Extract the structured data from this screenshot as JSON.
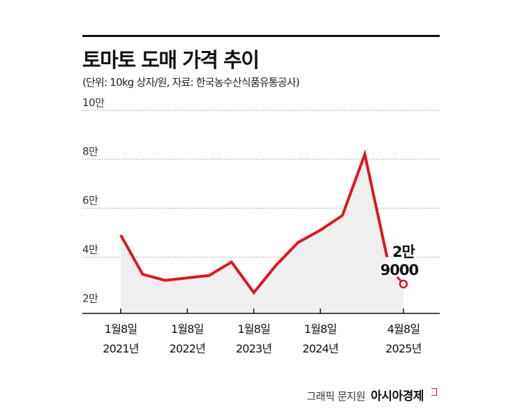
{
  "title": "토마토 도매 가격 추이",
  "subtitle": "(단위: 10kg 상자/원, 자료: 한국농수산식품유통공사)",
  "credit": {
    "graphic": "그래픽 문지원",
    "brand": "아시아경제"
  },
  "colors": {
    "line": "#e0161e",
    "area": "#efefef",
    "grid": "#999999"
  },
  "chart_data": {
    "type": "area",
    "title": "토마토 도매 가격 추이",
    "unit": "10kg 상자/원",
    "source": "한국농수산식품유통공사",
    "ylim": [
      17000,
      100000
    ],
    "y_ticks": [
      {
        "value": 20000,
        "label": "2만"
      },
      {
        "value": 40000,
        "label": "4만"
      },
      {
        "value": 60000,
        "label": "6만"
      },
      {
        "value": 80000,
        "label": "8만"
      },
      {
        "value": 100000,
        "label": "10만"
      }
    ],
    "x_ticks": [
      {
        "x": "2021-01-08",
        "label_1": "1월8일",
        "label_2": "2021년"
      },
      {
        "x": "2022-01-08",
        "label_1": "1월8일",
        "label_2": "2022년"
      },
      {
        "x": "2023-01-08",
        "label_1": "1월8일",
        "label_2": "2023년"
      },
      {
        "x": "2024-01-08",
        "label_1": "1월8일",
        "label_2": "2024년"
      },
      {
        "x": "2025-04-08",
        "label_1": "4월8일",
        "label_2": "2025년"
      }
    ],
    "series": [
      {
        "points": [
          {
            "x": "2021-01-08",
            "y": 49000
          },
          {
            "x": "2021-05-08",
            "y": 33000
          },
          {
            "x": "2021-09-08",
            "y": 30500
          },
          {
            "x": "2022-01-08",
            "y": 31500
          },
          {
            "x": "2022-05-08",
            "y": 32500
          },
          {
            "x": "2022-09-08",
            "y": 38000
          },
          {
            "x": "2023-01-08",
            "y": 25500
          },
          {
            "x": "2023-05-08",
            "y": 36500
          },
          {
            "x": "2023-09-08",
            "y": 46000
          },
          {
            "x": "2024-01-08",
            "y": 51000
          },
          {
            "x": "2024-05-08",
            "y": 57000
          },
          {
            "x": "2024-09-08",
            "y": 82000
          },
          {
            "x": "2025-01-08",
            "y": 40000
          },
          {
            "x": "2025-04-08",
            "y": 29000
          }
        ]
      }
    ],
    "annotation": {
      "line_1": "2만",
      "line_2": "9000"
    },
    "grid": true
  }
}
